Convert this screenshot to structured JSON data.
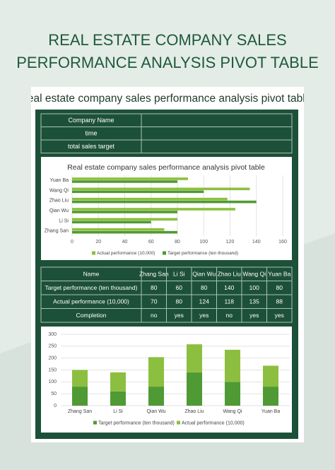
{
  "header": {
    "title_lines": [
      "REAL ESTATE COMPANY SALES",
      "PERFORMANCE ANALYSIS PIVOT TABLE"
    ]
  },
  "sheet_title": "real estate company sales performance analysis pivot table",
  "info_labels": [
    "Company Name",
    "time",
    "total sales target"
  ],
  "chart_data": [
    {
      "type": "hbar",
      "title": "Real estate company sales performance analysis pivot table",
      "categories": [
        "Zhang San",
        "Li Si",
        "Qian Wu",
        "Zhao Liu",
        "Wang Qi",
        "Yuan Ba"
      ],
      "series": [
        {
          "name": "Actual performance (10,000)",
          "color": "#8cbf3f",
          "values": [
            70,
            80,
            124,
            118,
            135,
            88
          ]
        },
        {
          "name": "Target performance (ten thousand)",
          "color": "#4f9a34",
          "values": [
            80,
            60,
            80,
            140,
            100,
            80
          ]
        }
      ],
      "xlim": [
        0,
        160
      ],
      "xticks": [
        0,
        20,
        40,
        60,
        80,
        100,
        120,
        140,
        160
      ],
      "grid": true
    },
    {
      "type": "stacked_bar",
      "categories": [
        "Zhang San",
        "Li Si",
        "Qian Wu",
        "Zhao Liu",
        "Wang Qi",
        "Yuan Ba"
      ],
      "series": [
        {
          "name": "Target performance (ten thousand)",
          "color": "#4f9a34",
          "values": [
            80,
            60,
            80,
            140,
            100,
            80
          ]
        },
        {
          "name": "Actual performance (10,000)",
          "color": "#8cbf3f",
          "values": [
            70,
            80,
            124,
            118,
            135,
            88
          ]
        }
      ],
      "ylim": [
        0,
        300
      ],
      "yticks": [
        0,
        50,
        100,
        150,
        200,
        250,
        300
      ],
      "grid": true
    }
  ],
  "table": {
    "header": [
      "Name",
      "Zhang San",
      "Li Si",
      "Qian Wu",
      "Zhao Liu",
      "Wang Qi",
      "Yuan Ba"
    ],
    "rows": [
      [
        "Target performance (ten thousand)",
        80,
        60,
        80,
        140,
        100,
        80
      ],
      [
        "Actual performance (10,000)",
        70,
        80,
        124,
        118,
        135,
        88
      ],
      [
        "Completion",
        "no",
        "yes",
        "yes",
        "no",
        "yes",
        "yes"
      ]
    ]
  }
}
